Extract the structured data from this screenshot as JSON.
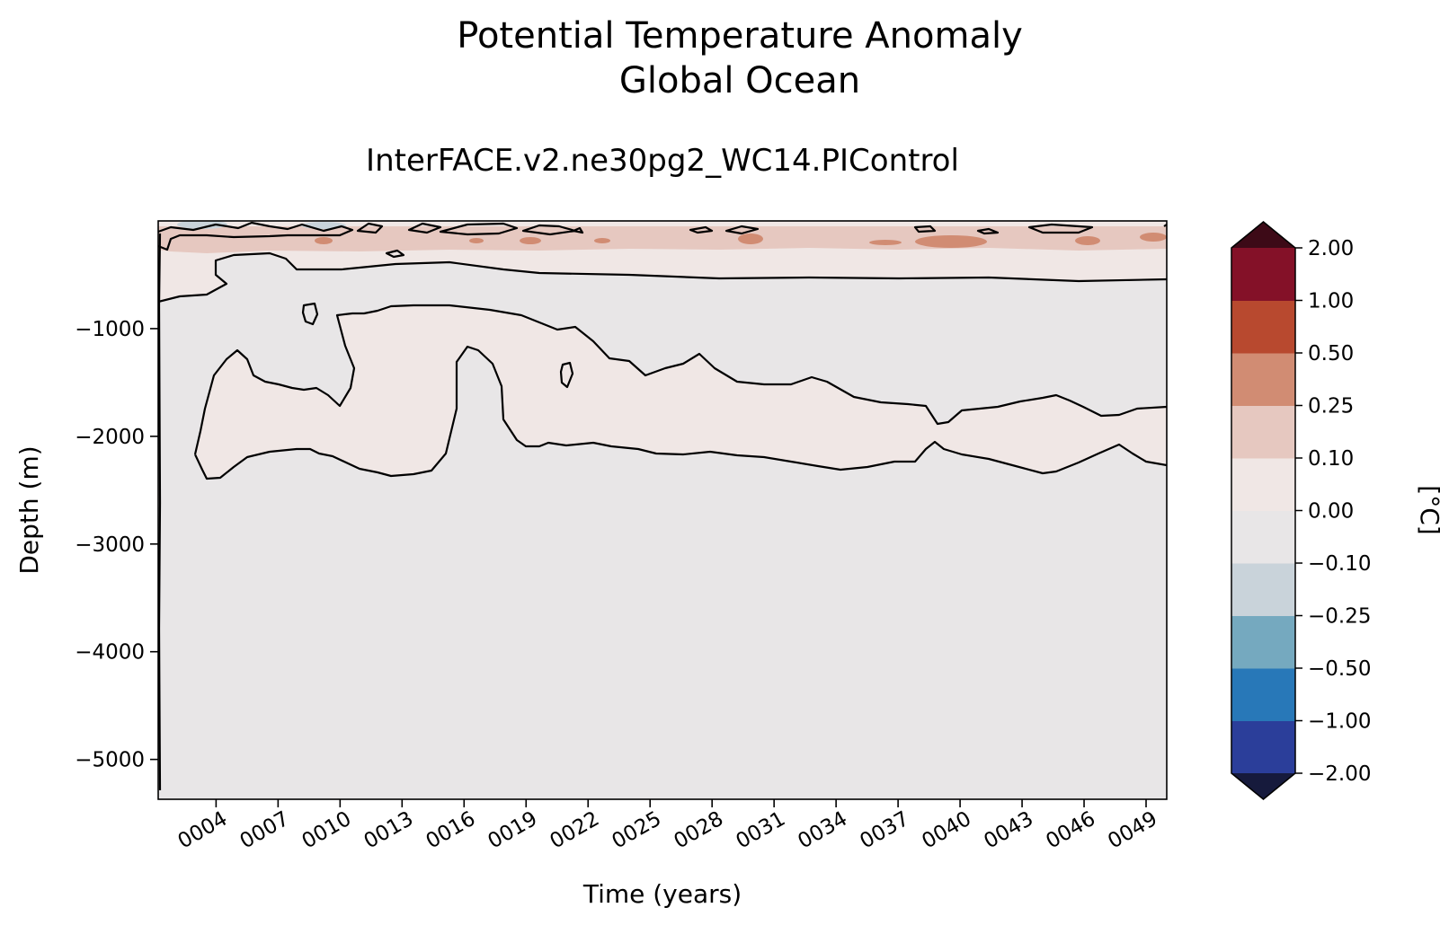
{
  "chart_data": {
    "type": "heatmap",
    "title_line1": "Potential Temperature Anomaly",
    "title_line2": "Global Ocean",
    "subtitle": "InterFACE.v2.ne30pg2_WC14.PIControl",
    "xlabel": "Time (years)",
    "ylabel": "Depth (m)",
    "xlim": [
      1.2,
      50.0
    ],
    "ylim": [
      -5370,
      0
    ],
    "x_ticks": [
      {
        "value": 4,
        "label": "0004"
      },
      {
        "value": 7,
        "label": "0007"
      },
      {
        "value": 10,
        "label": "0010"
      },
      {
        "value": 13,
        "label": "0013"
      },
      {
        "value": 16,
        "label": "0016"
      },
      {
        "value": 19,
        "label": "0019"
      },
      {
        "value": 22,
        "label": "0022"
      },
      {
        "value": 25,
        "label": "0025"
      },
      {
        "value": 28,
        "label": "0028"
      },
      {
        "value": 31,
        "label": "0031"
      },
      {
        "value": 34,
        "label": "0034"
      },
      {
        "value": 37,
        "label": "0037"
      },
      {
        "value": 40,
        "label": "0040"
      },
      {
        "value": 43,
        "label": "0043"
      },
      {
        "value": 46,
        "label": "0046"
      },
      {
        "value": 49,
        "label": "0049"
      }
    ],
    "y_ticks": [
      {
        "value": -1000,
        "label": "−1000"
      },
      {
        "value": -2000,
        "label": "−2000"
      },
      {
        "value": -3000,
        "label": "−3000"
      },
      {
        "value": -4000,
        "label": "−4000"
      },
      {
        "value": -5000,
        "label": "−5000"
      }
    ],
    "colorbar": {
      "label": "[°C]",
      "levels": [
        "−2.00",
        "−1.00",
        "−0.50",
        "−0.25",
        "−0.10",
        "0.00",
        "0.10",
        "0.25",
        "0.50",
        "1.00",
        "2.00"
      ],
      "colors": [
        "#2b3e9a",
        "#2878b8",
        "#75a9bf",
        "#c9d3da",
        "#e8e6e7",
        "#f0e7e5",
        "#e6c8c0",
        "#d18c73",
        "#b8492f",
        "#841128"
      ],
      "under_color": "#161a3c",
      "over_color": "#3d0a17"
    },
    "contour_levels": [
      -0.1,
      0.0,
      0.1
    ],
    "regions": [
      {
        "name": "surface-warm-layer",
        "value_range": "0.10 to 0.50",
        "depth_m": [
          0,
          -300
        ]
      },
      {
        "name": "near-surface-slight-warm",
        "value_range": "0.00 to 0.10",
        "depth_m": [
          -300,
          -600
        ]
      },
      {
        "name": "mid-depth-warm-band",
        "value_range": "0.00 to 0.10",
        "depth_m": [
          -800,
          -2400
        ]
      },
      {
        "name": "deep-ocean",
        "value_range": "-0.10 to 0.00",
        "depth_m": [
          -2000,
          -5370
        ]
      }
    ]
  }
}
